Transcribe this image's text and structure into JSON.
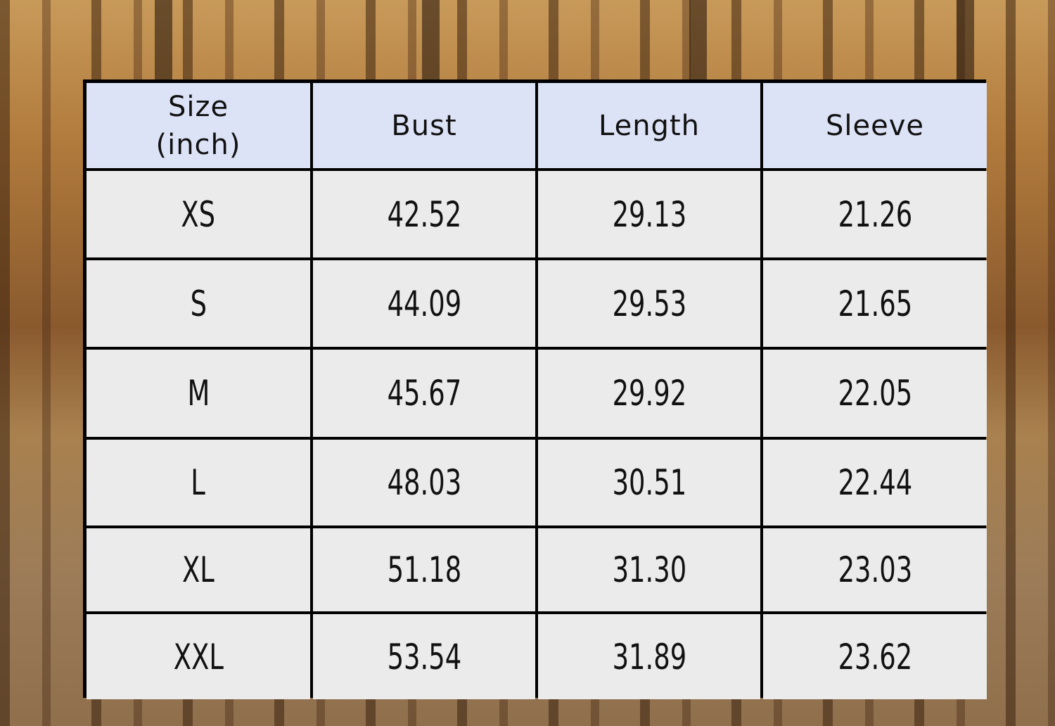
{
  "table": {
    "headers": [
      "Size\n(inch)",
      "Bust",
      "Length",
      "Sleeve"
    ],
    "header_lines": [
      "Size",
      "(inch)"
    ],
    "rows": [
      [
        "XS",
        "42.52",
        "29.13",
        "21.26"
      ],
      [
        "S",
        "44.09",
        "29.53",
        "21.65"
      ],
      [
        "M",
        "45.67",
        "29.92",
        "22.05"
      ],
      [
        "L",
        "48.03",
        "30.51",
        "22.44"
      ],
      [
        "XL",
        "51.18",
        "31.30",
        "23.03"
      ],
      [
        "XXL",
        "53.54",
        "31.89",
        "23.62"
      ]
    ]
  },
  "colors": {
    "header_bg": "#dde3f6",
    "cell_bg": "#ebebeb",
    "border": "#000000"
  }
}
